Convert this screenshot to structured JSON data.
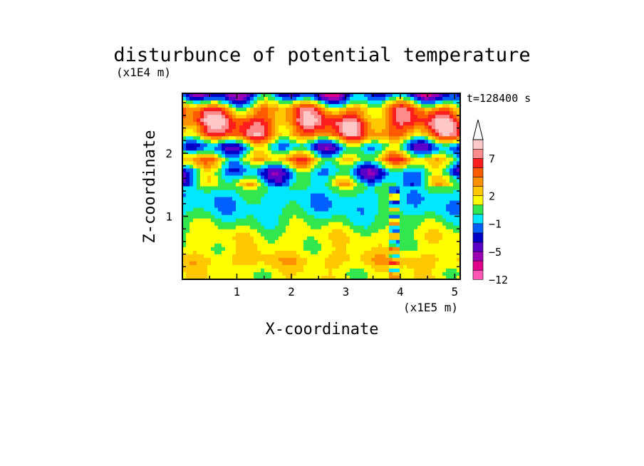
{
  "chart_data": {
    "type": "heatmap",
    "title": "disturbunce of potential temperature",
    "time_label": "t=128400 s",
    "xlabel": "X-coordinate",
    "ylabel": "Z-coordinate",
    "x_unit": "(x1E5 m)",
    "y_unit": "(x1E4 m)",
    "xlim": [
      0,
      5.1
    ],
    "ylim": [
      0,
      2.95
    ],
    "x_ticks": [
      1,
      2,
      3,
      4,
      5
    ],
    "y_ticks": [
      1,
      2
    ],
    "colorbar": {
      "labels": [
        "7",
        "2",
        "-1",
        "-5",
        "-12"
      ],
      "extend": "max",
      "colors": [
        "#FF55B4",
        "#E0008C",
        "#9B00B4",
        "#5A00C8",
        "#0000C8",
        "#0060FF",
        "#00E8FF",
        "#32E650",
        "#FFFF00",
        "#FFC800",
        "#FF9100",
        "#FF5A00",
        "#FF1E1E",
        "#FF8C8C",
        "#FFC8C8"
      ]
    },
    "field_profile": {
      "z": [
        0.1,
        0.3,
        0.5,
        0.7,
        0.9,
        1.1,
        1.3,
        1.5,
        1.7,
        1.9,
        2.1,
        2.3,
        2.5,
        2.7,
        2.9
      ],
      "dominant_level": [
        8,
        9,
        8,
        8,
        7,
        6,
        6,
        7,
        5,
        9,
        5,
        11,
        12,
        10,
        4
      ]
    }
  }
}
